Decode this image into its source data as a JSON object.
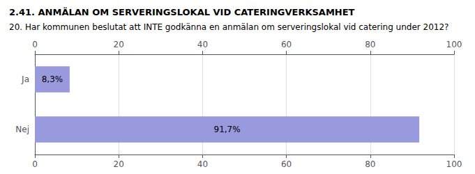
{
  "chart_data": {
    "type": "bar",
    "title": "2.41. ANMÄLAN OM SERVERINGSLOKAL VID CATERINGVERKSAMHET",
    "subtitle": "20. Har kommunen beslutat att INTE godkänna en anmälan om serveringslokal vid catering under 2012?",
    "orientation": "horizontal",
    "categories": [
      "Ja",
      "Nej"
    ],
    "values": [
      8.3,
      91.7
    ],
    "value_labels": [
      "8,3%",
      "91,7%"
    ],
    "data_labels": true,
    "color": "#9999dd",
    "xlim": [
      0,
      100
    ],
    "xticks": [
      0,
      20,
      40,
      60,
      80,
      100
    ],
    "grid": true
  }
}
